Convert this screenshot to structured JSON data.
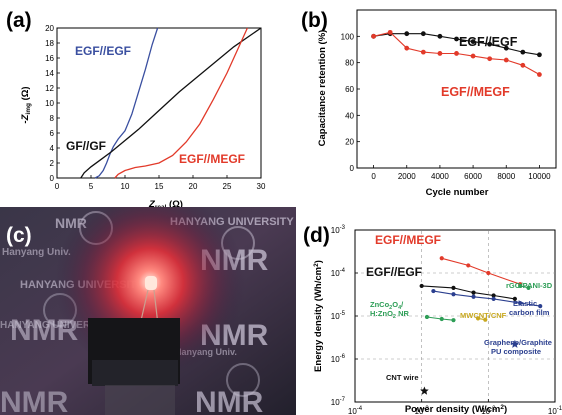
{
  "panels": {
    "a": {
      "label": "(a)"
    },
    "b": {
      "label": "(b)"
    },
    "c": {
      "label": "(c)"
    },
    "d": {
      "label": "(d)"
    }
  },
  "photo": {
    "texts": [
      "HANYANG UNIVERSITY",
      "HANYANG UNIVERSITY",
      "HANYANG UNIVERSITY",
      "NMR",
      "NMR",
      "NMR",
      "NMR",
      "NMR",
      "NMR",
      "Hanyang Univ.",
      "Hanyang Univ."
    ]
  },
  "colors": {
    "black": "#111111",
    "blue": "#3a4fa0",
    "red": "#e23a2a",
    "green": "#2e9e57",
    "yellow": "#c8a820",
    "navy": "#2b3f8f"
  },
  "chart_data": [
    {
      "type": "line",
      "panel": "a",
      "xlabel": "Z_real (Ω)",
      "ylabel": "-Z_img (Ω)",
      "xlim": [
        0,
        30
      ],
      "ylim": [
        0,
        20
      ],
      "xticks": [
        0,
        5,
        10,
        15,
        20,
        25,
        30
      ],
      "yticks": [
        0,
        2,
        4,
        6,
        8,
        10,
        12,
        14,
        16,
        18,
        20
      ],
      "series": [
        {
          "name": "EGF//EGF",
          "color": "#3a4fa0",
          "x": [
            5.6,
            6.2,
            6.8,
            7.3,
            7.8,
            8.3,
            9.0,
            10.0,
            11.0,
            12.0,
            13.0,
            14.0,
            14.8
          ],
          "y": [
            0.0,
            0.3,
            1.0,
            2.0,
            3.2,
            4.2,
            5.2,
            6.3,
            8.5,
            11.5,
            14.5,
            17.8,
            20.0
          ]
        },
        {
          "name": "GF//GF",
          "color": "#111111",
          "x": [
            3.5,
            4.0,
            5.0,
            6.5,
            8.0,
            10.0,
            12.0,
            15.0,
            18.0,
            22.0,
            26.0,
            30.0
          ],
          "y": [
            0.0,
            0.7,
            1.5,
            2.5,
            3.5,
            5.0,
            6.5,
            9.0,
            11.5,
            14.5,
            17.5,
            20.0
          ]
        },
        {
          "name": "EGF//MEGF",
          "color": "#e23a2a",
          "x": [
            8.5,
            9.0,
            10.0,
            11.5,
            13.0,
            15.0,
            17.0,
            19.0,
            21.0,
            23.0,
            25.0,
            26.5,
            28.0
          ],
          "y": [
            0.0,
            0.5,
            1.0,
            1.4,
            1.6,
            2.0,
            3.0,
            4.8,
            7.2,
            10.5,
            14.0,
            17.0,
            20.0
          ]
        }
      ]
    },
    {
      "type": "line",
      "panel": "b",
      "xlabel": "Cycle number",
      "ylabel": "Capacitance retention (%)",
      "xlim": [
        0,
        10000
      ],
      "ylim": [
        0,
        120
      ],
      "xticks": [
        0,
        2000,
        4000,
        6000,
        8000,
        10000
      ],
      "yticks": [
        0,
        20,
        40,
        60,
        80,
        100
      ],
      "series": [
        {
          "name": "EGF//EGF",
          "color": "#111111",
          "x": [
            0,
            1000,
            2000,
            3000,
            4000,
            5000,
            6000,
            7000,
            8000,
            9000,
            10000
          ],
          "y": [
            100,
            102,
            102,
            102,
            100,
            98,
            96,
            94,
            91,
            88,
            86
          ]
        },
        {
          "name": "EGF//MEGF",
          "color": "#e23a2a",
          "x": [
            0,
            1000,
            2000,
            3000,
            4000,
            5000,
            6000,
            7000,
            8000,
            9000,
            10000
          ],
          "y": [
            100,
            103,
            91,
            88,
            87,
            87,
            85,
            83,
            82,
            78,
            71
          ]
        }
      ]
    },
    {
      "type": "scatter",
      "panel": "d",
      "xlabel": "Power density (W/cm2)",
      "ylabel": "Energy density (Wh/cm2)",
      "xscale": "log",
      "yscale": "log",
      "xlim": [
        0.0001,
        0.1
      ],
      "ylim": [
        1e-07,
        0.001
      ],
      "xticks": [
        "10-4",
        "10-3",
        "10-2",
        "10-1"
      ],
      "yticks": [
        "10-7",
        "10-6",
        "10-5",
        "10-4",
        "10-3"
      ],
      "series": [
        {
          "name": "EGF//MEGF",
          "color": "#e23a2a",
          "marker": "circle",
          "x": [
            0.002,
            0.005,
            0.01,
            0.03
          ],
          "y": [
            0.00022,
            0.00015,
            0.0001,
            5.5e-05
          ]
        },
        {
          "name": "EGF//EGF",
          "color": "#111111",
          "marker": "circle",
          "x": [
            0.001,
            0.003,
            0.006,
            0.012,
            0.025
          ],
          "y": [
            5e-05,
            4.5e-05,
            3.5e-05,
            3e-05,
            2.5e-05
          ]
        },
        {
          "name": "rGO/PANI-3D",
          "color": "#2e9e57",
          "marker": "circle",
          "x": [
            0.03,
            0.04
          ],
          "y": [
            5e-05,
            4.5e-05
          ]
        },
        {
          "name": "Elastic carbon film",
          "color": "#2b3f8f",
          "marker": "circle",
          "x": [
            0.0015,
            0.003,
            0.006,
            0.012,
            0.03,
            0.06
          ],
          "y": [
            3.8e-05,
            3.2e-05,
            2.8e-05,
            2.5e-05,
            2e-05,
            1.7e-05
          ]
        },
        {
          "name": "ZnCo2O4/H:ZnO2 NR",
          "color": "#2e9e57",
          "marker": "circle",
          "x": [
            0.0012,
            0.002,
            0.003
          ],
          "y": [
            9.5e-06,
            8.5e-06,
            8e-06
          ]
        },
        {
          "name": "MWCNT/CNF",
          "color": "#c8a820",
          "marker": "circle",
          "x": [
            0.007,
            0.009
          ],
          "y": [
            8.8e-06,
            8.2e-06
          ]
        },
        {
          "name": "Graphene/Graphite PU composite",
          "color": "#2b3f8f",
          "marker": "star",
          "x": [
            0.025
          ],
          "y": [
            2.2e-06
          ]
        },
        {
          "name": "CNT wire",
          "color": "#111111",
          "marker": "star",
          "x": [
            0.0011
          ],
          "y": [
            1.8e-07
          ]
        }
      ]
    }
  ]
}
